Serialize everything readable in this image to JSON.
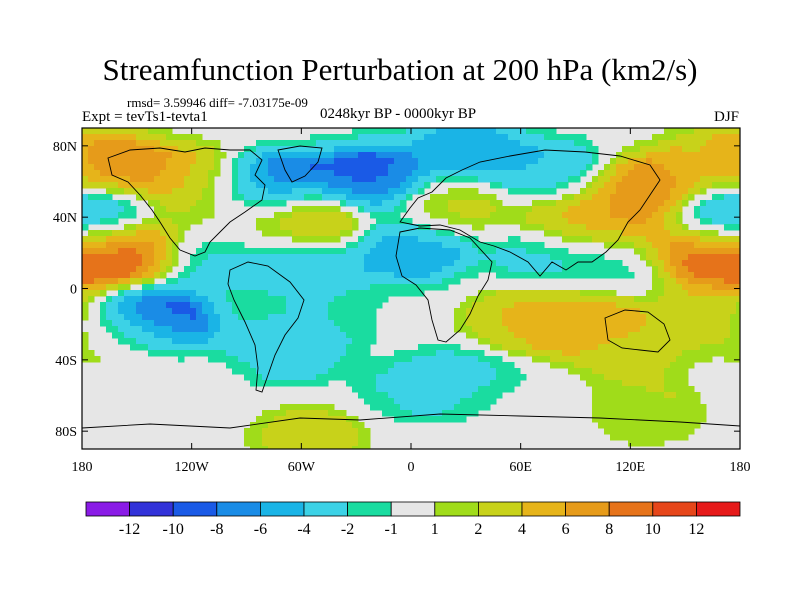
{
  "title": "Streamfunction Perturbation at 200 hPa (km2/s)",
  "stats_line": "rmsd= 3.59946 diff= -7.03175e-09",
  "experiment": "Expt = tevTs1-tevta1",
  "period": "0248kyr BP - 0000kyr BP",
  "season": "DJF",
  "chart_data": {
    "type": "heatmap",
    "title": "Streamfunction Perturbation at 200 hPa (km2/s)",
    "variable": "Streamfunction perturbation",
    "units": "km2/s",
    "level": "200 hPa",
    "projection": "cylindrical equidistant",
    "x_ticks": [
      "180",
      "120W",
      "60W",
      "0",
      "60E",
      "120E",
      "180"
    ],
    "x_tick_values": [
      -180,
      -120,
      -60,
      0,
      60,
      120,
      180
    ],
    "y_ticks": [
      "80N",
      "40N",
      "0",
      "40S",
      "80S"
    ],
    "y_tick_values": [
      80,
      40,
      0,
      -40,
      -80
    ],
    "xlim": [
      -180,
      180
    ],
    "ylim": [
      -90,
      90
    ],
    "colorbar": {
      "labels": [
        "-12",
        "-10",
        "-8",
        "-6",
        "-4",
        "-2",
        "-1",
        "1",
        "2",
        "4",
        "6",
        "8",
        "10",
        "12"
      ],
      "colors": [
        "#8a1be6",
        "#3232d9",
        "#1a5ae6",
        "#1a8ce6",
        "#1ab4e6",
        "#3cd2e6",
        "#1adca0",
        "#e6e6e6",
        "#a0dc1a",
        "#c8d21a",
        "#e6b41a",
        "#e69b1a",
        "#e6731a",
        "#e6461a",
        "#e61a1a"
      ]
    },
    "features": [
      {
        "lon": -165,
        "lat": 68,
        "value": 9
      },
      {
        "lon": -115,
        "lat": 62,
        "value": 5
      },
      {
        "lon": -80,
        "lat": 58,
        "value": -9
      },
      {
        "lon": -25,
        "lat": 62,
        "value": -9
      },
      {
        "lon": 30,
        "lat": 78,
        "value": -5
      },
      {
        "lon": 80,
        "lat": 65,
        "value": -4
      },
      {
        "lon": 130,
        "lat": 55,
        "value": 9
      },
      {
        "lon": 165,
        "lat": 72,
        "value": 3
      },
      {
        "lon": -175,
        "lat": 40,
        "value": -6
      },
      {
        "lon": -160,
        "lat": 22,
        "value": 12
      },
      {
        "lon": -95,
        "lat": 40,
        "value": 2
      },
      {
        "lon": -55,
        "lat": 38,
        "value": 6
      },
      {
        "lon": 20,
        "lat": 45,
        "value": 3
      },
      {
        "lon": 95,
        "lat": 38,
        "value": 6
      },
      {
        "lon": 175,
        "lat": 40,
        "value": -6
      },
      {
        "lon": 165,
        "lat": 20,
        "value": 11
      },
      {
        "lon": -110,
        "lat": 18,
        "value": -3
      },
      {
        "lon": -60,
        "lat": 15,
        "value": -4
      },
      {
        "lon": 0,
        "lat": 22,
        "value": -6
      },
      {
        "lon": 75,
        "lat": 18,
        "value": -3
      },
      {
        "lon": 110,
        "lat": 10,
        "value": -2
      },
      {
        "lon": -140,
        "lat": -18,
        "value": -10
      },
      {
        "lon": -35,
        "lat": -12,
        "value": -2
      },
      {
        "lon": -5,
        "lat": -15,
        "value": 0
      },
      {
        "lon": 60,
        "lat": -18,
        "value": 4
      },
      {
        "lon": 95,
        "lat": -18,
        "value": 7
      },
      {
        "lon": -70,
        "lat": -35,
        "value": -4
      },
      {
        "lon": 30,
        "lat": -50,
        "value": -3
      },
      {
        "lon": 0,
        "lat": -58,
        "value": -2
      },
      {
        "lon": -155,
        "lat": -30,
        "value": 2
      },
      {
        "lon": 120,
        "lat": -38,
        "value": 2
      },
      {
        "lon": 165,
        "lat": -15,
        "value": 3
      },
      {
        "lon": -55,
        "lat": -83,
        "value": 3
      },
      {
        "lon": 130,
        "lat": -70,
        "value": 2
      },
      {
        "lon": -110,
        "lat": -50,
        "value": 0
      },
      {
        "lon": 60,
        "lat": -65,
        "value": 0
      }
    ]
  }
}
